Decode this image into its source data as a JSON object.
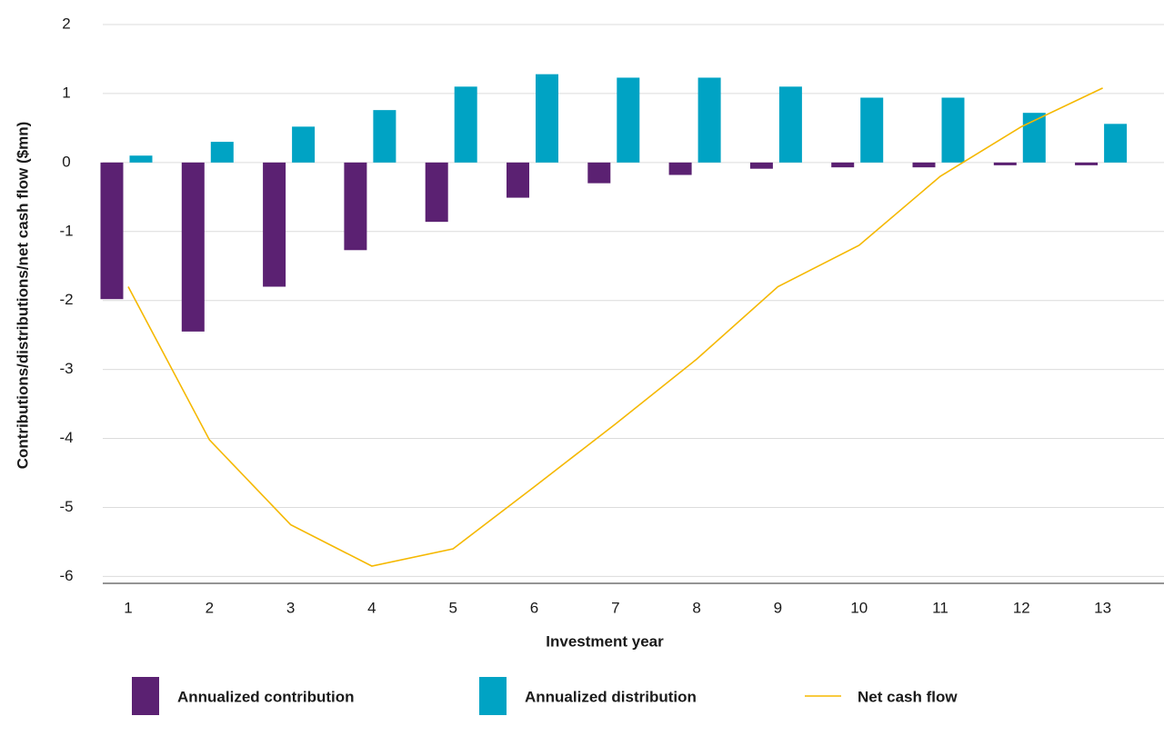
{
  "chart_data": {
    "type": "bar",
    "xlabel": "Investment year",
    "ylabel": "Contributions/distributions/net cash flow ($mn)",
    "categories": [
      "1",
      "2",
      "3",
      "4",
      "5",
      "6",
      "7",
      "8",
      "9",
      "10",
      "11",
      "12",
      "13"
    ],
    "series": [
      {
        "name": "Annualized contribution",
        "type": "bar",
        "color": "#5b2172",
        "values": [
          -1.98,
          -2.45,
          -1.8,
          -1.27,
          -0.86,
          -0.51,
          -0.3,
          -0.18,
          -0.09,
          -0.07,
          -0.07,
          -0.04,
          -0.04
        ]
      },
      {
        "name": "Annualized distribution",
        "type": "bar",
        "color": "#00a3c4",
        "values": [
          0.1,
          0.3,
          0.52,
          0.76,
          1.1,
          1.28,
          1.23,
          1.23,
          1.1,
          0.94,
          0.94,
          0.72,
          0.56
        ]
      },
      {
        "name": "Net cash flow",
        "type": "line",
        "color": "#f5b800",
        "values": [
          -1.8,
          -4.02,
          -5.25,
          -5.85,
          -5.6,
          -4.7,
          -3.79,
          -2.85,
          -1.8,
          -1.2,
          -0.2,
          0.52,
          1.08
        ]
      }
    ],
    "ylim": [
      -6.1,
      2
    ],
    "yticks": [
      -6,
      -5,
      -4,
      -3,
      -2,
      -1,
      0,
      1,
      2
    ],
    "grid": true
  }
}
